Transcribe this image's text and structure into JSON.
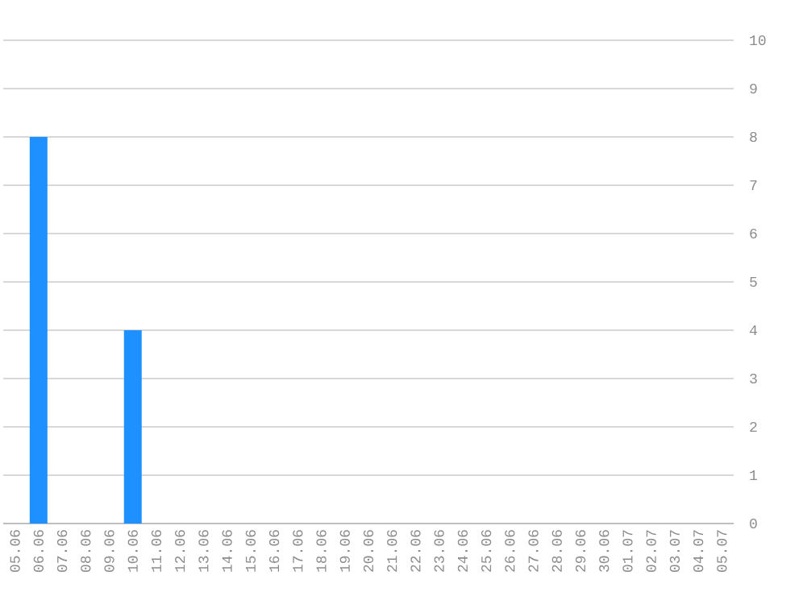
{
  "chart_data": {
    "type": "bar",
    "categories": [
      "05.06",
      "06.06",
      "07.06",
      "08.06",
      "09.06",
      "10.06",
      "11.06",
      "12.06",
      "13.06",
      "14.06",
      "15.06",
      "16.06",
      "17.06",
      "18.06",
      "19.06",
      "20.06",
      "21.06",
      "22.06",
      "23.06",
      "24.06",
      "25.06",
      "26.06",
      "27.06",
      "28.06",
      "29.06",
      "30.06",
      "01.07",
      "02.07",
      "03.07",
      "04.07",
      "05.07"
    ],
    "values": [
      0,
      8,
      0,
      0,
      0,
      4,
      0,
      0,
      0,
      0,
      0,
      0,
      0,
      0,
      0,
      0,
      0,
      0,
      0,
      0,
      0,
      0,
      0,
      0,
      0,
      0,
      0,
      0,
      0,
      0,
      0
    ],
    "color": "#1e90ff",
    "ylim": [
      0,
      10
    ],
    "yticks": [
      0,
      1,
      2,
      3,
      4,
      5,
      6,
      7,
      8,
      9,
      10
    ],
    "grid": "y"
  }
}
